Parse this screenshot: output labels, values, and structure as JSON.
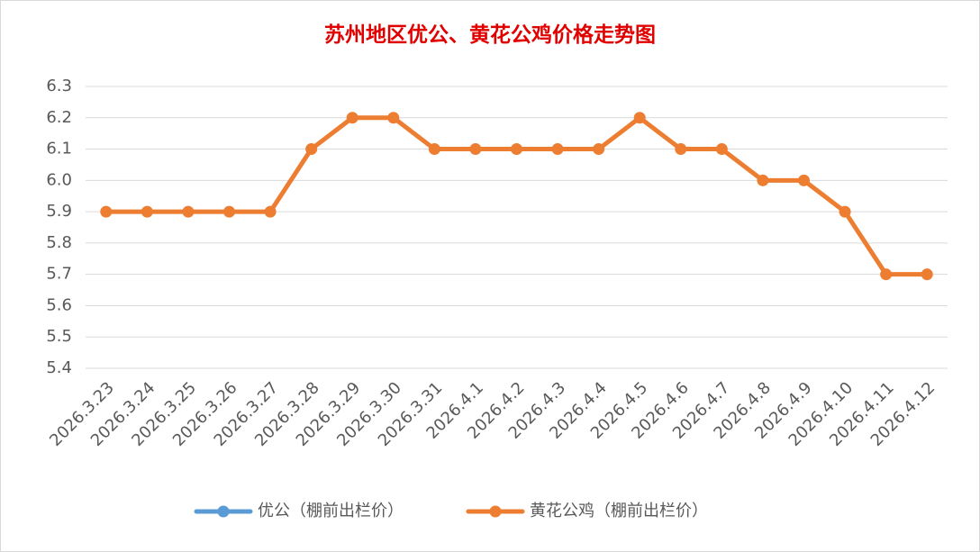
{
  "chart_data": {
    "type": "line",
    "title": "苏州地区优公、黄花公鸡价格走势图",
    "categories": [
      "2026.3.23",
      "2026.3.24",
      "2026.3.25",
      "2026.3.26",
      "2026.3.27",
      "2026.3.28",
      "2026.3.29",
      "2026.3.30",
      "2026.3.31",
      "2026.4.1",
      "2026.4.2",
      "2026.4.3",
      "2026.4.4",
      "2026.4.5",
      "2026.4.6",
      "2026.4.7",
      "2026.4.8",
      "2026.4.9",
      "2026.4.10",
      "2026.4.11",
      "2026.4.12"
    ],
    "series": [
      {
        "name": "优公（棚前出栏价）",
        "color": "#5b9bd5",
        "values": [
          null,
          null,
          null,
          null,
          null,
          null,
          null,
          null,
          null,
          null,
          null,
          null,
          null,
          null,
          null,
          null,
          null,
          null,
          null,
          null,
          null
        ]
      },
      {
        "name": "黄花公鸡（棚前出栏价）",
        "color": "#ed7d31",
        "values": [
          5.9,
          5.9,
          5.9,
          5.9,
          5.9,
          6.1,
          6.2,
          6.2,
          6.1,
          6.1,
          6.1,
          6.1,
          6.1,
          6.2,
          6.1,
          6.1,
          6.0,
          6.0,
          5.9,
          5.7,
          5.7
        ]
      }
    ],
    "ylim": [
      5.4,
      6.3
    ],
    "yticks": [
      5.4,
      5.5,
      5.6,
      5.7,
      5.8,
      5.9,
      {
        "value": 6,
        "label": "6.0"
      },
      6.1,
      6.2,
      6.3
    ],
    "grid": true,
    "legend": "bottom"
  }
}
